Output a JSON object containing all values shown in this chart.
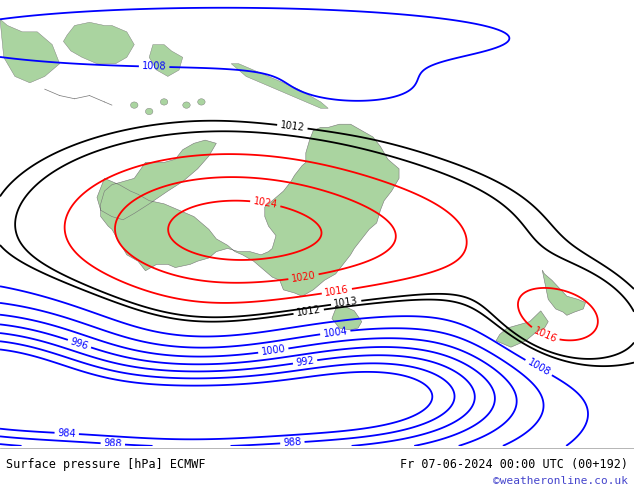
{
  "title_left": "Surface pressure [hPa] ECMWF",
  "title_right": "Fr 07-06-2024 00:00 UTC (00+192)",
  "watermark": "©weatheronline.co.uk",
  "background_color": "#c8cdd8",
  "land_color": "#aad4a0",
  "footer_bg": "#ffffff",
  "footer_text_color": "#000000",
  "watermark_color": "#4444cc",
  "fig_width": 6.34,
  "fig_height": 4.9,
  "dpi": 100,
  "lon_min": 100,
  "lon_max": 185,
  "lat_min": -62,
  "lat_max": 8,
  "red_levels": [
    1016,
    1020,
    1024
  ],
  "black_levels": [
    1012,
    1013
  ],
  "blue_levels": [
    984,
    988,
    992,
    996,
    1000,
    1004,
    1008
  ]
}
